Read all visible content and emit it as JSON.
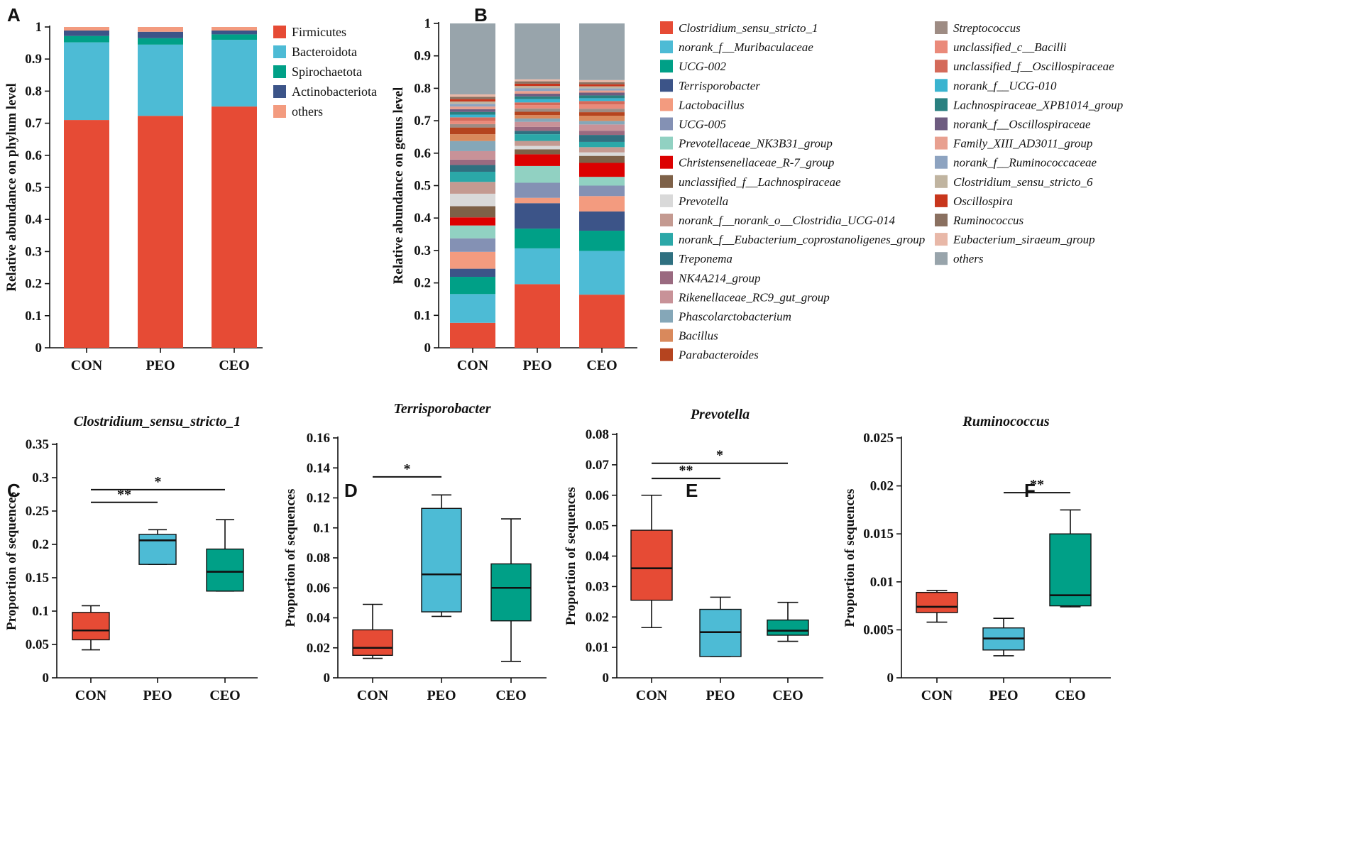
{
  "panels": {
    "A": {
      "label": "A"
    },
    "B": {
      "label": "B"
    },
    "C": {
      "label": "C"
    },
    "D": {
      "label": "D"
    },
    "E": {
      "label": "E"
    },
    "F": {
      "label": "F"
    }
  },
  "chart_data": [
    {
      "id": "A",
      "type": "bar",
      "stacked": true,
      "ylabel": "Relative abundance on phylum level",
      "ylim": [
        0,
        1
      ],
      "yticks": [
        "0",
        "0.1",
        "0.2",
        "0.3",
        "0.4",
        "0.5",
        "0.6",
        "0.7",
        "0.8",
        "0.9",
        "1"
      ],
      "categories": [
        "CON",
        "PEO",
        "CEO"
      ],
      "series": [
        {
          "name": "Firmicutes",
          "color": "#e64b35",
          "values": [
            0.71,
            0.723,
            0.752
          ]
        },
        {
          "name": "Bacteroidota",
          "color": "#4dbbd5",
          "values": [
            0.242,
            0.222,
            0.208
          ]
        },
        {
          "name": "Spirochaetota",
          "color": "#00a087",
          "values": [
            0.02,
            0.02,
            0.017
          ]
        },
        {
          "name": "Actinobacteriota",
          "color": "#3c5488",
          "values": [
            0.017,
            0.02,
            0.012
          ]
        },
        {
          "name": "others",
          "color": "#f39b7f",
          "values": [
            0.011,
            0.015,
            0.011
          ]
        }
      ]
    },
    {
      "id": "B",
      "type": "bar",
      "stacked": true,
      "ylabel": "Relative abundance on genus level",
      "ylim": [
        0,
        1
      ],
      "yticks": [
        "0",
        "0.1",
        "0.2",
        "0.3",
        "0.4",
        "0.5",
        "0.6",
        "0.7",
        "0.8",
        "0.9",
        "1"
      ],
      "categories": [
        "CON",
        "PEO",
        "CEO"
      ],
      "series": [
        {
          "name": "Clostridium_sensu_stricto_1",
          "color": "#e64b35",
          "values": [
            0.074,
            0.19,
            0.152
          ]
        },
        {
          "name": "norank_f__Muribaculaceae",
          "color": "#4dbbd5",
          "values": [
            0.085,
            0.107,
            0.125
          ]
        },
        {
          "name": "UCG-002",
          "color": "#00a087",
          "values": [
            0.051,
            0.059,
            0.058
          ]
        },
        {
          "name": "Terrisporobacter",
          "color": "#3c5488",
          "values": [
            0.024,
            0.076,
            0.055
          ]
        },
        {
          "name": "Lactobacillus",
          "color": "#f39b7f",
          "values": [
            0.05,
            0.016,
            0.044
          ]
        },
        {
          "name": "UCG-005",
          "color": "#8491b4",
          "values": [
            0.04,
            0.045,
            0.03
          ]
        },
        {
          "name": "Prevotellaceae_NK3B31_group",
          "color": "#91d1c2",
          "values": [
            0.038,
            0.05,
            0.025
          ]
        },
        {
          "name": "Christensenellaceae_R-7_group",
          "color": "#dc0000",
          "values": [
            0.024,
            0.035,
            0.04
          ]
        },
        {
          "name": "unclassified_f__Lachnospiraceae",
          "color": "#7e6148",
          "values": [
            0.033,
            0.015,
            0.02
          ]
        },
        {
          "name": "Prevotella",
          "color": "#d9d9d9",
          "values": [
            0.037,
            0.01,
            0.01
          ]
        },
        {
          "name": "norank_f__norank_o__Clostridia_UCG-014",
          "color": "#c49a91",
          "values": [
            0.035,
            0.015,
            0.015
          ]
        },
        {
          "name": "norank_f__Eubacterium_coprostanoligenes_group",
          "color": "#2ba8a8",
          "values": [
            0.03,
            0.02,
            0.015
          ]
        },
        {
          "name": "Treponema",
          "color": "#2f7080",
          "values": [
            0.02,
            0.01,
            0.02
          ]
        },
        {
          "name": "NK4A214_group",
          "color": "#9a6a80",
          "values": [
            0.016,
            0.012,
            0.012
          ]
        },
        {
          "name": "Rikenellaceae_RC9_gut_group",
          "color": "#c89298",
          "values": [
            0.025,
            0.015,
            0.018
          ]
        },
        {
          "name": "Phascolarctobacterium",
          "color": "#85a7b8",
          "values": [
            0.03,
            0.01,
            0.01
          ]
        },
        {
          "name": "Bacillus",
          "color": "#d9895c",
          "values": [
            0.02,
            0.01,
            0.015
          ]
        },
        {
          "name": "Parabacteroides",
          "color": "#b5441f",
          "values": [
            0.02,
            0.01,
            0.01
          ]
        },
        {
          "name": "Streptococcus",
          "color": "#9e8c84",
          "values": [
            0.01,
            0.01,
            0.01
          ]
        },
        {
          "name": "unclassified_c__Bacilli",
          "color": "#ea8a7a",
          "values": [
            0.01,
            0.01,
            0.012
          ]
        },
        {
          "name": "unclassified_f__Oscillospiraceae",
          "color": "#d46a5a",
          "values": [
            0.01,
            0.008,
            0.01
          ]
        },
        {
          "name": "norank_f__UCG-010",
          "color": "#3ab4d0",
          "values": [
            0.008,
            0.01,
            0.008
          ]
        },
        {
          "name": "Lachnospiraceae_XPB1014_group",
          "color": "#2a8080",
          "values": [
            0.008,
            0.008,
            0.008
          ]
        },
        {
          "name": "norank_f__Oscillospiraceae",
          "color": "#6e5c80",
          "values": [
            0.008,
            0.008,
            0.008
          ]
        },
        {
          "name": "Family_XIII_AD3011_group",
          "color": "#e8a090",
          "values": [
            0.008,
            0.008,
            0.006
          ]
        },
        {
          "name": "norank_f__Ruminococcaceae",
          "color": "#8da3c0",
          "values": [
            0.008,
            0.008,
            0.006
          ]
        },
        {
          "name": "Clostridium_sensu_stricto_6",
          "color": "#c0b4a0",
          "values": [
            0.007,
            0.007,
            0.006
          ]
        },
        {
          "name": "Oscillospira",
          "color": "#c8361c",
          "values": [
            0.007,
            0.007,
            0.006
          ]
        },
        {
          "name": "Ruminococcus",
          "color": "#8a7060",
          "values": [
            0.007,
            0.007,
            0.006
          ]
        },
        {
          "name": "Eubacterium_siraeum_group",
          "color": "#e8b8a8",
          "values": [
            0.007,
            0.006,
            0.006
          ]
        },
        {
          "name": "others",
          "color": "#98a4ab",
          "values": [
            0.21,
            0.167,
            0.162
          ]
        }
      ]
    },
    {
      "id": "C",
      "type": "box",
      "title": "Clostridium_sensu_stricto_1",
      "ylabel": "Proportion of sequences",
      "ylim": [
        0,
        0.35
      ],
      "yticks": [
        "0",
        "0.05",
        "0.1",
        "0.15",
        "0.2",
        "0.25",
        "0.3",
        "0.35"
      ],
      "categories": [
        "CON",
        "PEO",
        "CEO"
      ],
      "boxes": [
        {
          "min": 0.042,
          "q1": 0.057,
          "median": 0.071,
          "q3": 0.098,
          "max": 0.108,
          "color": "#e64b35"
        },
        {
          "min": 0.17,
          "q1": 0.17,
          "median": 0.206,
          "q3": 0.215,
          "max": 0.222,
          "color": "#4dbbd5"
        },
        {
          "min": 0.13,
          "q1": 0.13,
          "median": 0.159,
          "q3": 0.193,
          "max": 0.237,
          "color": "#00a087"
        }
      ],
      "significance": [
        {
          "from": 0,
          "to": 2,
          "y": 0.282,
          "label": "*"
        },
        {
          "from": 0,
          "to": 1,
          "y": 0.263,
          "label": "**"
        }
      ]
    },
    {
      "id": "D",
      "type": "box",
      "title": "Terrisporobacter",
      "ylabel": "Proportion of sequences",
      "ylim": [
        0,
        0.16
      ],
      "yticks": [
        "0",
        "0.02",
        "0.04",
        "0.06",
        "0.08",
        "0.1",
        "0.12",
        "0.14",
        "0.16"
      ],
      "categories": [
        "CON",
        "PEO",
        "CEO"
      ],
      "boxes": [
        {
          "min": 0.013,
          "q1": 0.015,
          "median": 0.02,
          "q3": 0.032,
          "max": 0.049,
          "color": "#e64b35"
        },
        {
          "min": 0.041,
          "q1": 0.044,
          "median": 0.069,
          "q3": 0.113,
          "max": 0.122,
          "color": "#4dbbd5"
        },
        {
          "min": 0.011,
          "q1": 0.038,
          "median": 0.06,
          "q3": 0.076,
          "max": 0.106,
          "color": "#00a087"
        }
      ],
      "significance": [
        {
          "from": 0,
          "to": 1,
          "y": 0.134,
          "label": "*"
        }
      ]
    },
    {
      "id": "E",
      "type": "box",
      "title": "Prevotella",
      "ylabel": "Proportion of sequences",
      "ylim": [
        0,
        0.08
      ],
      "yticks": [
        "0",
        "0.01",
        "0.02",
        "0.03",
        "0.04",
        "0.05",
        "0.06",
        "0.07",
        "0.08"
      ],
      "categories": [
        "CON",
        "PEO",
        "CEO"
      ],
      "boxes": [
        {
          "min": 0.0165,
          "q1": 0.0255,
          "median": 0.036,
          "q3": 0.0485,
          "max": 0.06,
          "color": "#e64b35"
        },
        {
          "min": 0.007,
          "q1": 0.007,
          "median": 0.015,
          "q3": 0.0225,
          "max": 0.0265,
          "color": "#4dbbd5"
        },
        {
          "min": 0.012,
          "q1": 0.014,
          "median": 0.0155,
          "q3": 0.019,
          "max": 0.0248,
          "color": "#00a087"
        }
      ],
      "significance": [
        {
          "from": 0,
          "to": 2,
          "y": 0.0705,
          "label": "*"
        },
        {
          "from": 0,
          "to": 1,
          "y": 0.0655,
          "label": "**"
        }
      ]
    },
    {
      "id": "F",
      "type": "box",
      "title": "Ruminococcus",
      "ylabel": "Proportion of sequences",
      "ylim": [
        0,
        0.025
      ],
      "yticks": [
        "0",
        "0.005",
        "0.01",
        "0.015",
        "0.02",
        "0.025"
      ],
      "categories": [
        "CON",
        "PEO",
        "CEO"
      ],
      "boxes": [
        {
          "min": 0.0058,
          "q1": 0.0068,
          "median": 0.0074,
          "q3": 0.0089,
          "max": 0.0091,
          "color": "#e64b35"
        },
        {
          "min": 0.0023,
          "q1": 0.0029,
          "median": 0.0041,
          "q3": 0.0052,
          "max": 0.0062,
          "color": "#4dbbd5"
        },
        {
          "min": 0.0074,
          "q1": 0.0075,
          "median": 0.0086,
          "q3": 0.015,
          "max": 0.0175,
          "color": "#00a087"
        }
      ],
      "significance": [
        {
          "from": 1,
          "to": 2,
          "y": 0.0193,
          "label": "**"
        }
      ]
    }
  ]
}
